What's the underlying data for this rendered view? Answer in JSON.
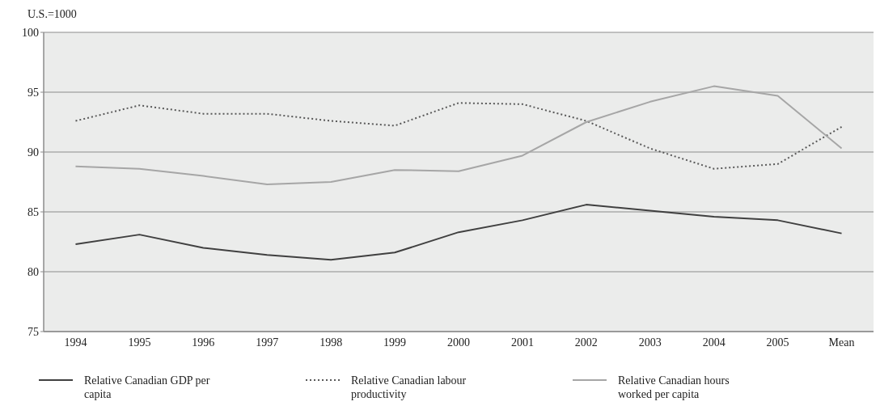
{
  "chart_data": {
    "type": "line",
    "ylabel": "U.S.=1000",
    "categories": [
      "1994",
      "1995",
      "1996",
      "1997",
      "1998",
      "1999",
      "2000",
      "2001",
      "2002",
      "2003",
      "2004",
      "2005",
      "Mean"
    ],
    "series": [
      {
        "name": "Relative Canadian GDP per capita",
        "color": "#404040",
        "line_style": "solid",
        "values": [
          82.3,
          83.1,
          82.0,
          81.4,
          81.0,
          81.6,
          83.3,
          84.3,
          85.6,
          85.1,
          84.6,
          84.3,
          83.2
        ]
      },
      {
        "name": "Relative Canadian labour productivity",
        "color": "#595959",
        "line_style": "dotted",
        "values": [
          92.6,
          93.9,
          93.2,
          93.2,
          92.6,
          92.2,
          94.1,
          94.0,
          92.6,
          90.3,
          88.6,
          89.0,
          92.1
        ]
      },
      {
        "name": "Relative Canadian hours worked per capita",
        "color": "#a6a6a6",
        "line_style": "solid",
        "values": [
          88.8,
          88.6,
          88.0,
          87.3,
          87.5,
          88.5,
          88.4,
          89.7,
          92.5,
          94.2,
          95.5,
          94.7,
          90.3
        ]
      }
    ],
    "ylim": [
      75,
      100
    ],
    "yticks": [
      75,
      80,
      85,
      90,
      95,
      100
    ],
    "grid": "y",
    "legend": "bottom",
    "marker": "none"
  }
}
